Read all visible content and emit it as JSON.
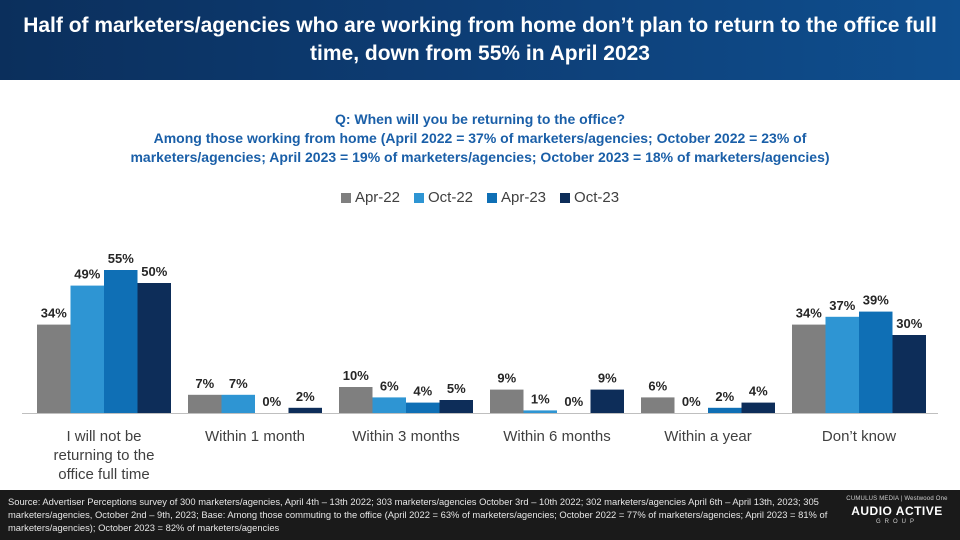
{
  "header": {
    "title": "Half of marketers/agencies who are working from home don’t plan to return to the office full time, down from 55% in April 2023"
  },
  "question": {
    "line1": "Q: When will you be returning to the office?",
    "line2": "Among those working from home (April 2022 = 37% of marketers/agencies; October 2022 = 23% of",
    "line3": "marketers/agencies;  April 2023 = 19% of marketers/agencies;  October 2023 = 18% of marketers/agencies)"
  },
  "colors": {
    "Apr-22": "#7f7f7f",
    "Oct-22": "#2e95d3",
    "Apr-23": "#0f6fb5",
    "Oct-23": "#0d2d59"
  },
  "chart_data": {
    "type": "bar",
    "categories": [
      [
        "I will not be",
        "returning to the",
        "office full time"
      ],
      [
        "Within 1 month"
      ],
      [
        "Within 3 months"
      ],
      [
        "Within 6 months"
      ],
      [
        "Within a year"
      ],
      [
        "Don’t know"
      ]
    ],
    "series": [
      {
        "name": "Apr-22",
        "values": [
          34,
          7,
          10,
          9,
          6,
          34
        ]
      },
      {
        "name": "Oct-22",
        "values": [
          49,
          7,
          6,
          1,
          0,
          37
        ]
      },
      {
        "name": "Apr-23",
        "values": [
          55,
          0,
          4,
          0,
          2,
          39
        ]
      },
      {
        "name": "Oct-23",
        "values": [
          50,
          2,
          5,
          9,
          4,
          30
        ]
      }
    ],
    "value_suffix": "%",
    "legend_position": "top",
    "grid": false
  },
  "footer": {
    "source": "Source: Advertiser Perceptions survey of 300 marketers/agencies, April 4th – 13th  2022; 303 marketers/agencies October 3rd – 10th 2022; 302 marketers/agencies April 6th – April 13th, 2023; 305 marketers/agencies, October 2nd – 9th, 2023; Base: Among those commuting to the office  (April 2022 = 63% of marketers/agencies; October 2022 = 77% of marketers/agencies; April 2023 = 81% of marketers/agencies); October 2023 = 82% of marketers/agencies",
    "brand_top": "CUMULUS MEDIA | Westwood One",
    "brand_main": "AUDIO ACTIVE",
    "brand_group": "GROUP"
  }
}
